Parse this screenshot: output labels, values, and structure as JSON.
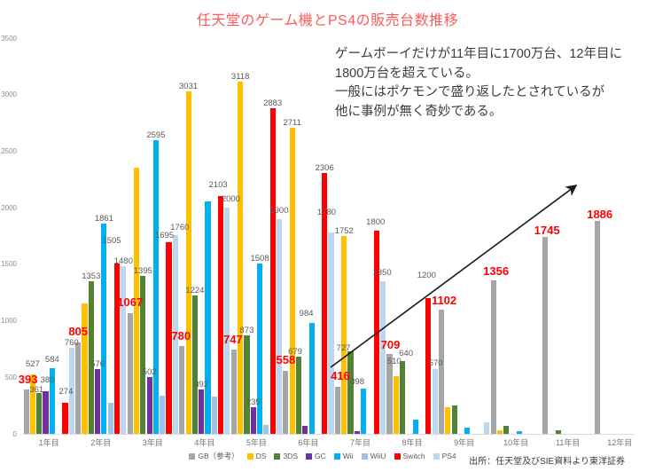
{
  "title": {
    "text": "任天堂のゲーム機とPS4の販売台数推移"
  },
  "annotation": {
    "lines": [
      "ゲームボーイだけが11年目に1700万台、12年目に",
      "1800万台を超えている。",
      "一般にはポケモンで盛り返したとされているが",
      "他に事例が無く奇妙である。"
    ]
  },
  "source": {
    "text": "出所：任天堂及びSIE資料より東洋証券"
  },
  "colors": {
    "title_red": "#ff5a5a",
    "gb_label_red": "#fe0000",
    "data_label_gray": "#595959",
    "axis_gray": "#8c8c8c"
  },
  "chart_data": {
    "type": "bar",
    "title": "任天堂のゲーム機とPS4の販売台数推移",
    "categories": [
      "1年目",
      "2年目",
      "3年目",
      "4年目",
      "5年目",
      "6年目",
      "7年目",
      "8年目",
      "9年目",
      "10年目",
      "11年目",
      "12年目"
    ],
    "y_axis": {
      "min": 0,
      "max": 3500,
      "step": 500,
      "ticks": [
        "0",
        "500",
        "1000",
        "1500",
        "2000",
        "2500",
        "3000",
        "3500"
      ]
    },
    "grid": false,
    "legend_position": "bottom",
    "unit_note": "万台 (10k units)",
    "series": [
      {
        "key": "gb",
        "name": "GB（参考）",
        "color": "#a6a6a6",
        "label_style": "red",
        "values": [
          393,
          805,
          1067,
          780,
          747,
          558,
          416,
          709,
          1102,
          1356,
          1745,
          1886
        ],
        "labels": [
          "393",
          "805",
          "1067",
          "780",
          "747",
          "558",
          "416",
          "709",
          "1102",
          "1356",
          "1745",
          "1886"
        ]
      },
      {
        "key": "ds",
        "name": "DS",
        "color": "#ffc000",
        "label_style": "gray",
        "values": [
          527,
          1151,
          2356,
          3031,
          3118,
          2711,
          1752,
          510,
          235,
          30,
          null,
          null
        ],
        "labels": [
          "527",
          null,
          null,
          "3031",
          "3118",
          "2711",
          "1752",
          "510",
          null,
          null,
          null,
          null
        ]
      },
      {
        "key": "3ds",
        "name": "3DS",
        "color": "#548235",
        "label_style": "gray",
        "values": [
          361,
          1353,
          1395,
          1224,
          873,
          679,
          727,
          640,
          255,
          69,
          30,
          null
        ],
        "labels": [
          "361",
          "1353",
          "1395",
          "1224",
          "873",
          "679",
          "727",
          "640",
          null,
          null,
          null,
          null
        ]
      },
      {
        "key": "gc",
        "name": "GC",
        "color": "#7030a0",
        "label_style": "gray",
        "values": [
          380,
          576,
          502,
          392,
          235,
          73,
          25,
          null,
          null,
          null,
          null,
          null
        ],
        "labels": [
          "380",
          "576",
          "502",
          "392",
          "235",
          null,
          null,
          null,
          null,
          null,
          null,
          null
        ]
      },
      {
        "key": "wii",
        "name": "Wii",
        "color": "#00b0f0",
        "label_style": "gray",
        "values": [
          584,
          1861,
          2595,
          2053,
          1508,
          984,
          398,
          122,
          53,
          26,
          null,
          null
        ],
        "labels": [
          "584",
          "1861",
          "2595",
          null,
          "1508",
          "984",
          "398",
          null,
          null,
          null,
          null,
          null
        ]
      },
      {
        "key": "wiiu",
        "name": "WiiU",
        "color": "#9dc3e6",
        "label_style": "gray",
        "values": [
          null,
          272,
          338,
          326,
          76,
          null,
          null,
          null,
          null,
          null,
          null,
          null
        ],
        "labels": [
          null,
          null,
          null,
          null,
          null,
          null,
          null,
          null,
          null,
          null,
          null,
          null
        ]
      },
      {
        "key": "switch",
        "name": "Switch",
        "color": "#ff0000",
        "label_style": "gray",
        "values": [
          274,
          1505,
          1695,
          2103,
          2883,
          2306,
          1800,
          1200,
          null,
          null,
          null,
          null
        ],
        "labels": [
          "274",
          "1505",
          "1695",
          "2103",
          "2883",
          "2306",
          "1800",
          "1200",
          null,
          null,
          null,
          null
        ]
      },
      {
        "key": "ps4",
        "name": "PS4",
        "color": "#bdd7ee",
        "label_style": "gray",
        "values": [
          760,
          1480,
          1760,
          2000,
          1900,
          1780,
          1350,
          570,
          100,
          null,
          null,
          null
        ],
        "labels": [
          "760",
          "1480",
          "1760",
          "2000",
          "1900",
          "1780",
          "1350",
          "570",
          null,
          null,
          null,
          null
        ]
      }
    ],
    "annotation_text": "ゲームボーイだけが11年目に1700万台、12年目に1800万台を超えている。一般にはポケモンで盛り返したとされているが他に事例が無く奇妙である。",
    "trend_arrow": true
  }
}
